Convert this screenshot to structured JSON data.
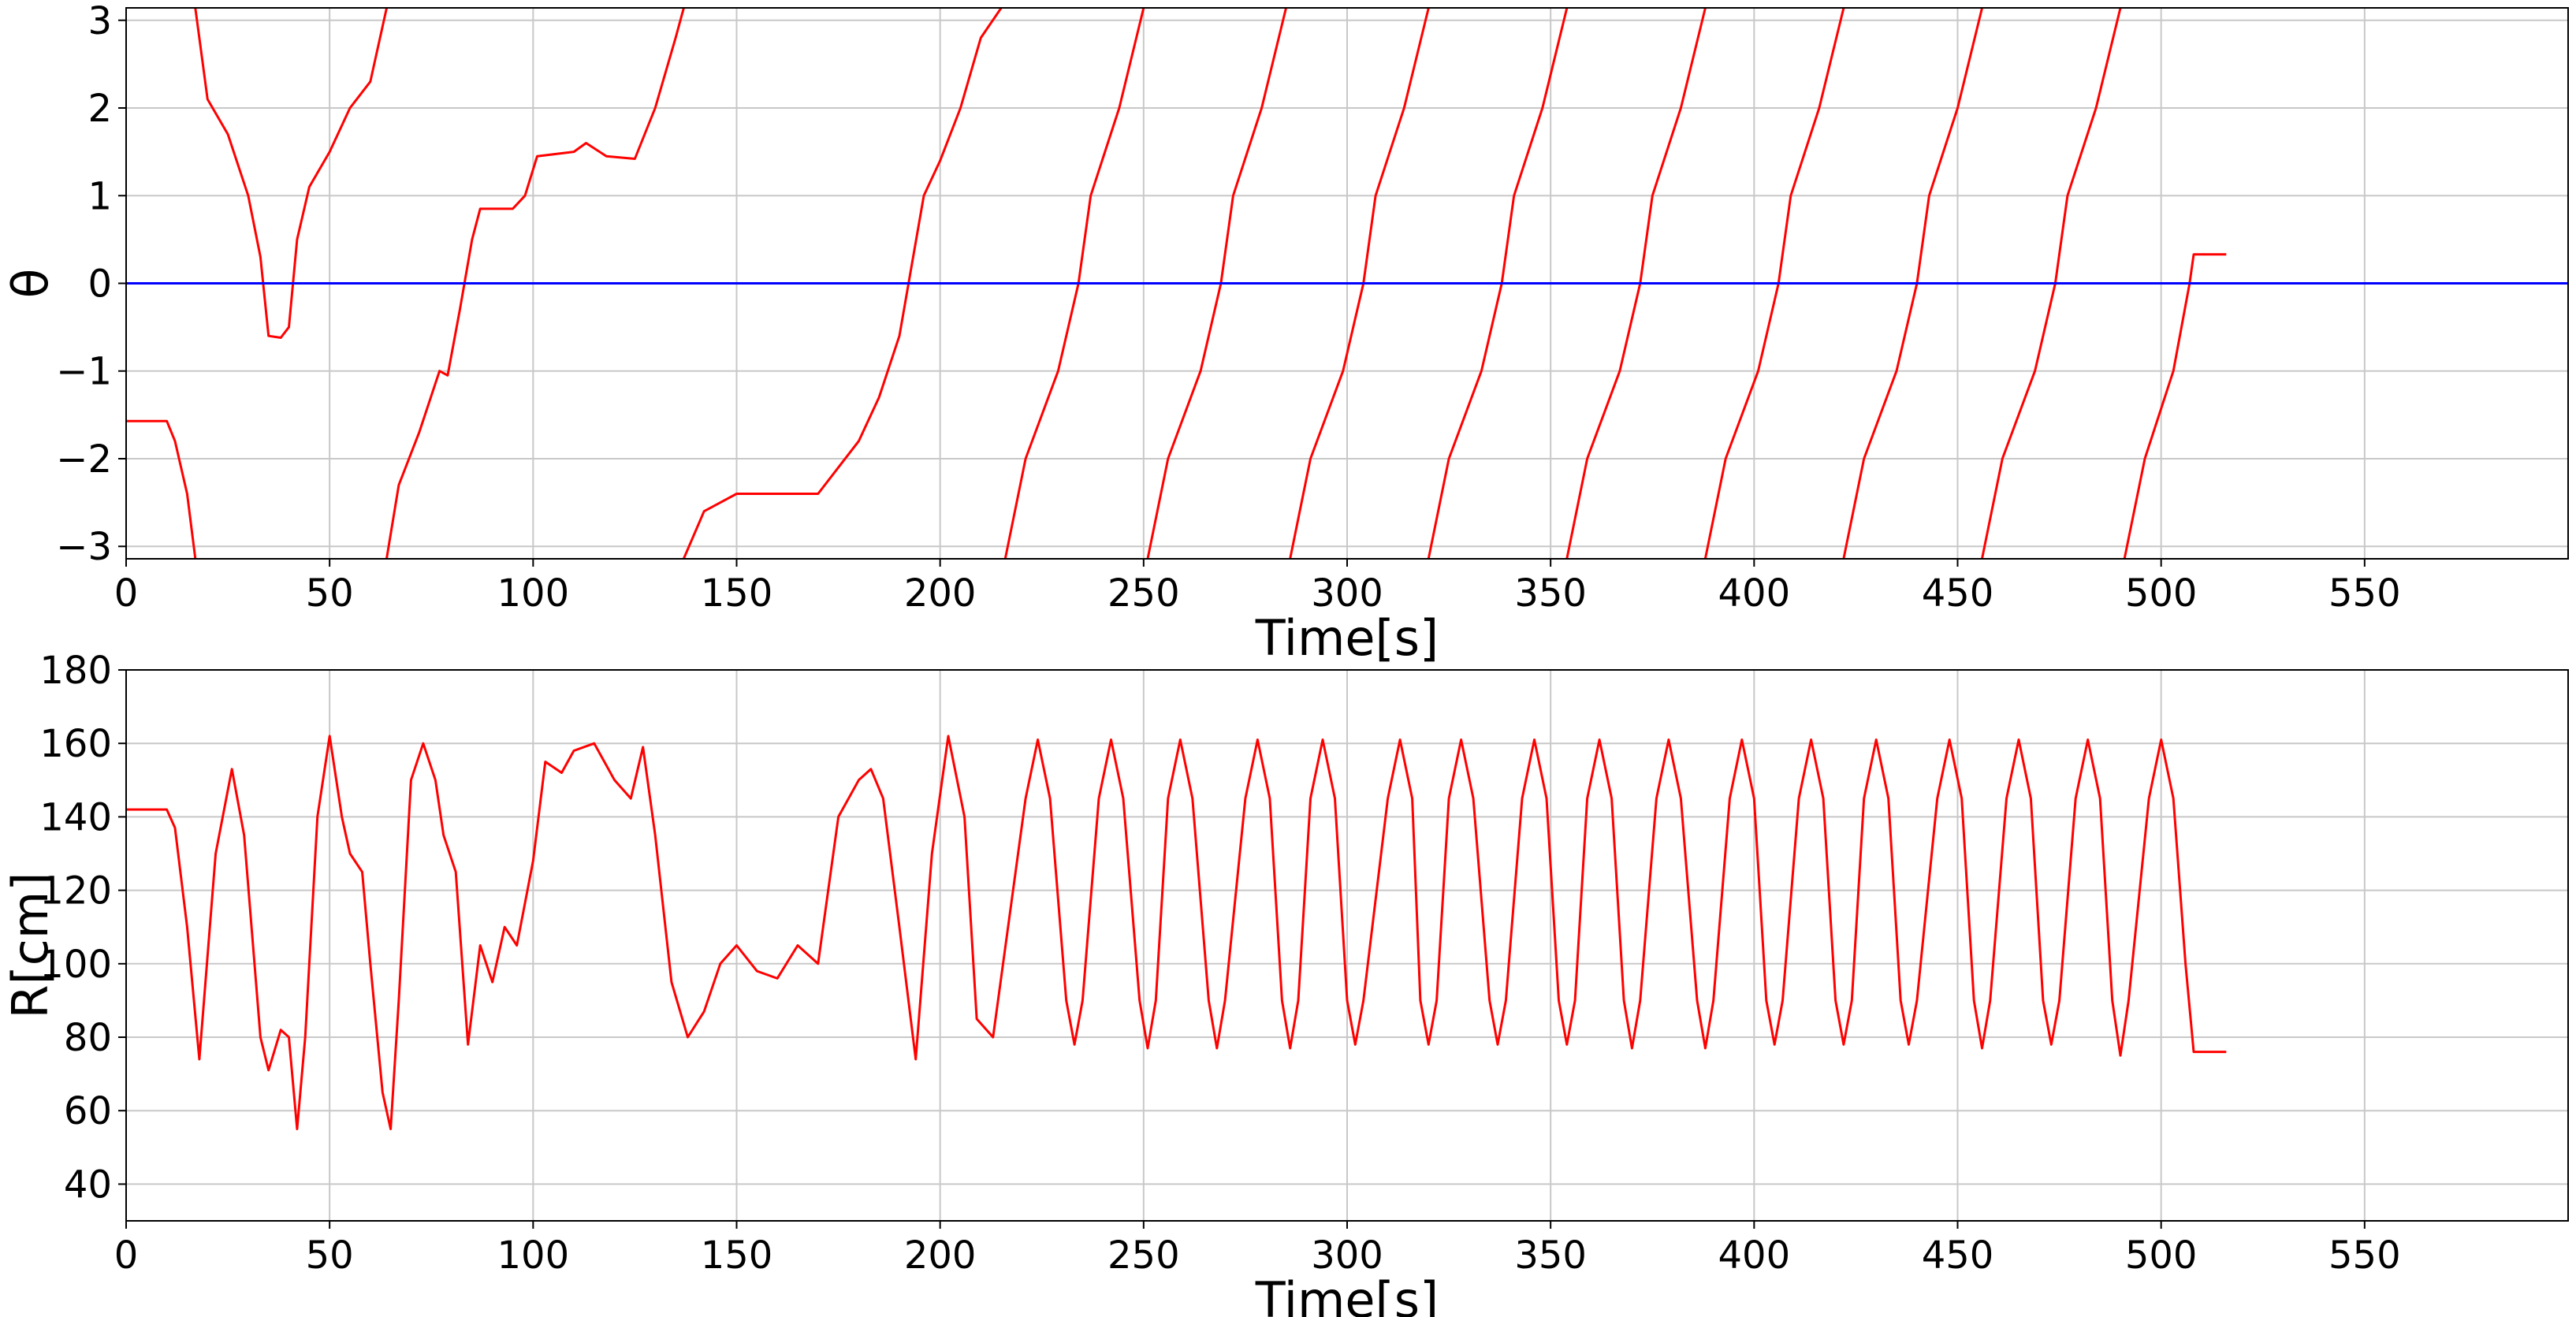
{
  "chart_data": [
    {
      "type": "line",
      "xlabel": "Time[s]",
      "ylabel": "θ",
      "xlim": [
        0,
        600
      ],
      "xticks": [
        0,
        50,
        100,
        150,
        200,
        250,
        300,
        350,
        400,
        450,
        500,
        550
      ],
      "ylim": [
        -3.1416,
        3.1416
      ],
      "yticks": [
        {
          "value": -3,
          "label": "−3"
        },
        {
          "value": -2,
          "label": "−2"
        },
        {
          "value": -1,
          "label": "−1"
        },
        0,
        1,
        2,
        3
      ],
      "grid": true,
      "series": [
        {
          "color": "#ff0000",
          "x": [
            0,
            10,
            12,
            15,
            17,
            17,
            17,
            20,
            25,
            30,
            33,
            35,
            38,
            40,
            42,
            45,
            50,
            55,
            60,
            64,
            64,
            64,
            67,
            72,
            77,
            79,
            82,
            85,
            87,
            95,
            98,
            101,
            110,
            113,
            118,
            125,
            130,
            135,
            137,
            137,
            137,
            142,
            150,
            170,
            175,
            180,
            185,
            190,
            193,
            196,
            200,
            205,
            210,
            215,
            215,
            216,
            221,
            229,
            234,
            237,
            244,
            250,
            250,
            251,
            256,
            264,
            269,
            272,
            279,
            285,
            285,
            286,
            291,
            299,
            304,
            307,
            314,
            320,
            320,
            320,
            325,
            333,
            338,
            341,
            348,
            354,
            354,
            354,
            359,
            367,
            372,
            375,
            382,
            388,
            388,
            388,
            393,
            401,
            406,
            409,
            416,
            422,
            422,
            422,
            427,
            435,
            440,
            443,
            450,
            456,
            456,
            456,
            461,
            469,
            474,
            477,
            484,
            490,
            490,
            491,
            496,
            503,
            507,
            508,
            516
          ],
          "values": [
            -1.57,
            -1.57,
            -1.8,
            -2.4,
            -3.14,
            null,
            3.14,
            2.1,
            1.7,
            1.0,
            0.3,
            -0.6,
            -0.62,
            -0.5,
            0.5,
            1.1,
            1.5,
            2.0,
            2.3,
            3.14,
            null,
            -3.14,
            -2.3,
            -1.7,
            -1.0,
            -1.05,
            -0.3,
            0.5,
            0.85,
            0.85,
            1.0,
            1.45,
            1.5,
            1.6,
            1.45,
            1.42,
            2.0,
            2.8,
            3.14,
            null,
            -3.14,
            -2.6,
            -2.4,
            -2.4,
            -2.1,
            -1.8,
            -1.3,
            -0.6,
            0.2,
            1.0,
            1.4,
            2.0,
            2.8,
            3.14,
            null,
            -3.14,
            -2,
            -1,
            0,
            1,
            2,
            3.14,
            null,
            -3.14,
            -2,
            -1,
            0,
            1,
            2,
            3.14,
            null,
            -3.14,
            -2,
            -1,
            0,
            1,
            2,
            3.14,
            null,
            -3.14,
            -2,
            -1,
            0,
            1,
            2,
            3.14,
            null,
            -3.14,
            -2,
            -1,
            0,
            1,
            2,
            3.14,
            null,
            -3.14,
            -2,
            -1,
            0,
            1,
            2,
            3.14,
            null,
            -3.14,
            -2,
            -1,
            0,
            1,
            2,
            3.14,
            null,
            -3.14,
            -2,
            -1,
            0,
            1,
            2,
            3.14,
            null,
            -3.14,
            -2,
            -1,
            0,
            0.33,
            0.33
          ]
        },
        {
          "color": "#0000ff",
          "x": [
            0,
            600
          ],
          "values": [
            0,
            0
          ]
        }
      ]
    },
    {
      "type": "line",
      "xlabel": "Time[s]",
      "ylabel": "R[cm]",
      "xlim": [
        0,
        600
      ],
      "xticks": [
        0,
        50,
        100,
        150,
        200,
        250,
        300,
        350,
        400,
        450,
        500,
        550
      ],
      "ylim": [
        30,
        180
      ],
      "yticks": [
        40,
        60,
        80,
        100,
        120,
        140,
        160,
        180
      ],
      "grid": true,
      "series": [
        {
          "color": "#ff0000",
          "x": [
            0,
            10,
            12,
            15,
            18,
            22,
            26,
            29,
            33,
            35,
            38,
            40,
            42,
            44,
            47,
            50,
            53,
            55,
            58,
            60,
            63,
            65,
            67,
            70,
            73,
            76,
            78,
            81,
            84,
            87,
            90,
            93,
            96,
            100,
            103,
            107,
            110,
            115,
            120,
            124,
            127,
            130,
            134,
            138,
            142,
            146,
            150,
            155,
            160,
            165,
            170,
            175,
            180,
            183,
            186,
            190,
            194,
            198,
            202,
            206,
            209,
            213,
            221,
            224,
            227,
            231,
            233,
            235,
            239,
            242,
            245,
            249,
            251,
            253,
            256,
            259,
            262,
            266,
            268,
            270,
            275,
            278,
            281,
            284,
            286,
            288,
            291,
            294,
            297,
            300,
            302,
            304,
            310,
            313,
            316,
            318,
            320,
            322,
            325,
            328,
            331,
            335,
            337,
            339,
            343,
            346,
            349,
            352,
            354,
            356,
            359,
            362,
            365,
            368,
            370,
            372,
            376,
            379,
            382,
            386,
            388,
            390,
            394,
            397,
            400,
            403,
            405,
            407,
            411,
            414,
            417,
            420,
            422,
            424,
            427,
            430,
            433,
            436,
            438,
            440,
            445,
            448,
            451,
            454,
            456,
            458,
            462,
            465,
            468,
            471,
            473,
            475,
            479,
            482,
            485,
            488,
            490,
            492,
            497,
            500,
            503,
            506,
            508,
            516
          ],
          "values": [
            142,
            142,
            137,
            110,
            74,
            130,
            153,
            135,
            80,
            71,
            82,
            80,
            55,
            80,
            140,
            162,
            140,
            130,
            125,
            100,
            65,
            55,
            90,
            150,
            160,
            150,
            135,
            125,
            78,
            105,
            95,
            110,
            105,
            128,
            155,
            152,
            158,
            160,
            150,
            145,
            159,
            135,
            95,
            80,
            87,
            100,
            105,
            98,
            96,
            105,
            100,
            140,
            150,
            153,
            145,
            110,
            74,
            130,
            162,
            140,
            85,
            80,
            145,
            161,
            145,
            90,
            78,
            90,
            145,
            161,
            145,
            90,
            77,
            90,
            145,
            161,
            145,
            90,
            77,
            90,
            145,
            161,
            145,
            90,
            77,
            90,
            145,
            161,
            145,
            90,
            78,
            90,
            145,
            161,
            145,
            90,
            78,
            90,
            145,
            161,
            145,
            90,
            78,
            90,
            145,
            161,
            145,
            90,
            78,
            90,
            145,
            161,
            145,
            90,
            77,
            90,
            145,
            161,
            145,
            90,
            77,
            90,
            145,
            161,
            145,
            90,
            78,
            90,
            145,
            161,
            145,
            90,
            78,
            90,
            145,
            161,
            145,
            90,
            78,
            90,
            145,
            161,
            145,
            90,
            77,
            90,
            145,
            161,
            145,
            90,
            78,
            90,
            145,
            161,
            145,
            90,
            75,
            90,
            145,
            161,
            145,
            100,
            76,
            76
          ]
        }
      ]
    }
  ]
}
